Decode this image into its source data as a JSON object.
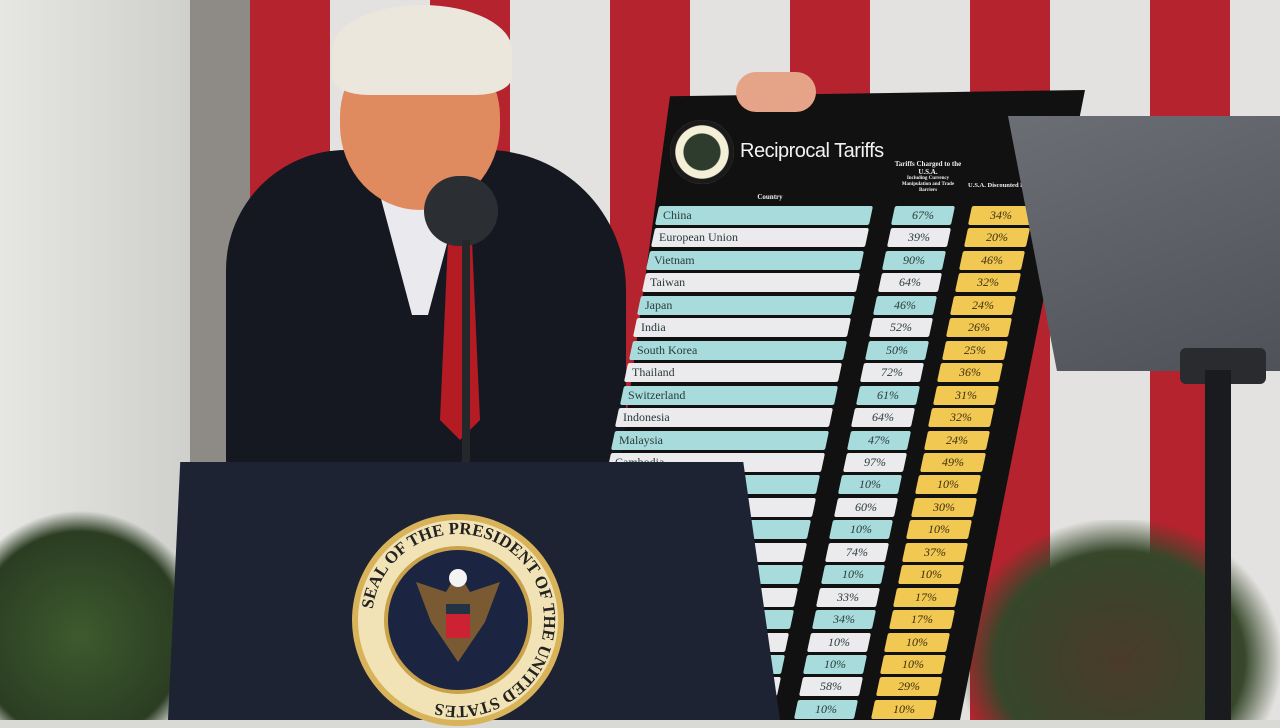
{
  "board": {
    "title": "Reciprocal Tariffs",
    "headers": {
      "country": "Country",
      "charged": "Tariffs Charged to the U.S.A.",
      "charged_sub": "Including Currency Manipulation and Trade Barriers",
      "discounted": "U.S.A. Discounted Reciprocal Tariffs"
    },
    "rows": [
      {
        "country": "China",
        "charged": "67%",
        "reciprocal": "34%"
      },
      {
        "country": "European Union",
        "charged": "39%",
        "reciprocal": "20%"
      },
      {
        "country": "Vietnam",
        "charged": "90%",
        "reciprocal": "46%"
      },
      {
        "country": "Taiwan",
        "charged": "64%",
        "reciprocal": "32%"
      },
      {
        "country": "Japan",
        "charged": "46%",
        "reciprocal": "24%"
      },
      {
        "country": "India",
        "charged": "52%",
        "reciprocal": "26%"
      },
      {
        "country": "South Korea",
        "charged": "50%",
        "reciprocal": "25%"
      },
      {
        "country": "Thailand",
        "charged": "72%",
        "reciprocal": "36%"
      },
      {
        "country": "Switzerland",
        "charged": "61%",
        "reciprocal": "31%"
      },
      {
        "country": "Indonesia",
        "charged": "64%",
        "reciprocal": "32%"
      },
      {
        "country": "Malaysia",
        "charged": "47%",
        "reciprocal": "24%"
      },
      {
        "country": "Cambodia",
        "charged": "97%",
        "reciprocal": "49%"
      },
      {
        "country": "",
        "charged": "10%",
        "reciprocal": "10%"
      },
      {
        "country": "",
        "charged": "60%",
        "reciprocal": "30%"
      },
      {
        "country": "",
        "charged": "10%",
        "reciprocal": "10%"
      },
      {
        "country": "",
        "charged": "74%",
        "reciprocal": "37%"
      },
      {
        "country": "",
        "charged": "10%",
        "reciprocal": "10%"
      },
      {
        "country": "",
        "charged": "33%",
        "reciprocal": "17%"
      },
      {
        "country": "",
        "charged": "34%",
        "reciprocal": "17%"
      },
      {
        "country": "",
        "charged": "10%",
        "reciprocal": "10%"
      },
      {
        "country": "",
        "charged": "10%",
        "reciprocal": "10%"
      },
      {
        "country": "",
        "charged": "58%",
        "reciprocal": "29%"
      },
      {
        "country": "",
        "charged": "10%",
        "reciprocal": "10%"
      }
    ]
  },
  "podium": {
    "seal_text": "SEAL OF THE PRESIDENT OF THE UNITED STATES"
  },
  "colors": {
    "cyan_row": "#a8dcdc",
    "white_row": "#ebebee",
    "gold_cell": "#f1c852",
    "flag_red": "#b5232e",
    "podium": "#1d2333"
  }
}
